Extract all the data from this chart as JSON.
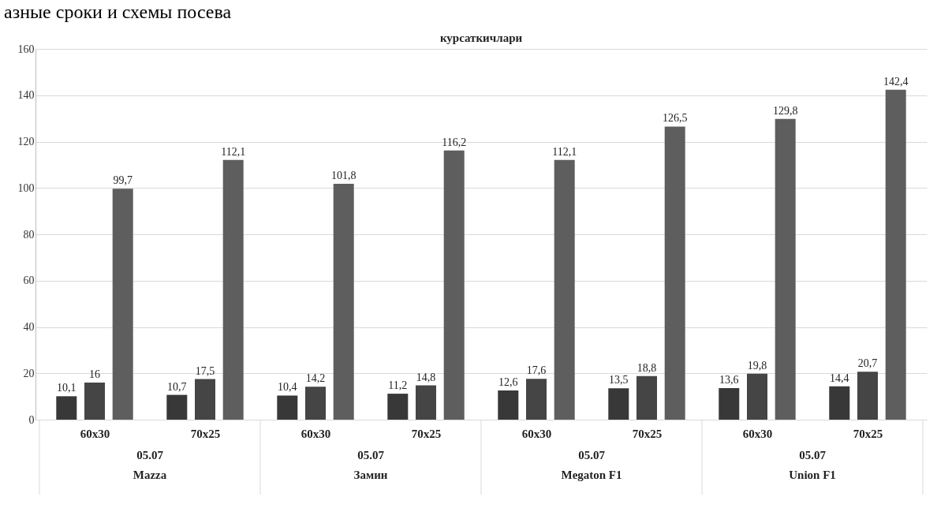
{
  "chart_data": {
    "type": "bar",
    "title": "курсаткичлари",
    "categories": [
      "60x30",
      "70x25",
      "60x30",
      "70x25",
      "60x30",
      "70x25",
      "60x30",
      "70x25"
    ],
    "series": [
      {
        "color": "#383838",
        "values": [
          10.1,
          10.7,
          10.4,
          11.2,
          12.6,
          13.5,
          13.6,
          14.4
        ],
        "value_labels": [
          "10,1",
          "10,7",
          "10,4",
          "11,2",
          "12,6",
          "13,5",
          "13,6",
          "14,4"
        ]
      },
      {
        "color": "#454545",
        "values": [
          16,
          17.5,
          14.2,
          14.8,
          17.6,
          18.8,
          19.8,
          20.7
        ],
        "value_labels": [
          "16",
          "17,5",
          "14,2",
          "14,8",
          "17,6",
          "18,8",
          "19,8",
          "20,7"
        ]
      },
      {
        "color": "#5e5e5e",
        "values": [
          99.7,
          112.1,
          101.8,
          116.2,
          112.1,
          126.5,
          129.8,
          142.4
        ],
        "value_labels": [
          "99,7",
          "112,1",
          "101,8",
          "116,2",
          "112,1",
          "126,5",
          "129,8",
          "142,4"
        ]
      }
    ],
    "ylim": [
      0,
      160
    ],
    "yticks": [
      0,
      20,
      40,
      60,
      80,
      100,
      120,
      140,
      160
    ],
    "grid": "y",
    "legend": false,
    "annotations": [
      "азные сроки и схемы посева",
      "05.07",
      "05.07",
      "05.07",
      "05.07",
      "Mazza",
      "Замин",
      "Megaton F1",
      "Union F1"
    ]
  }
}
